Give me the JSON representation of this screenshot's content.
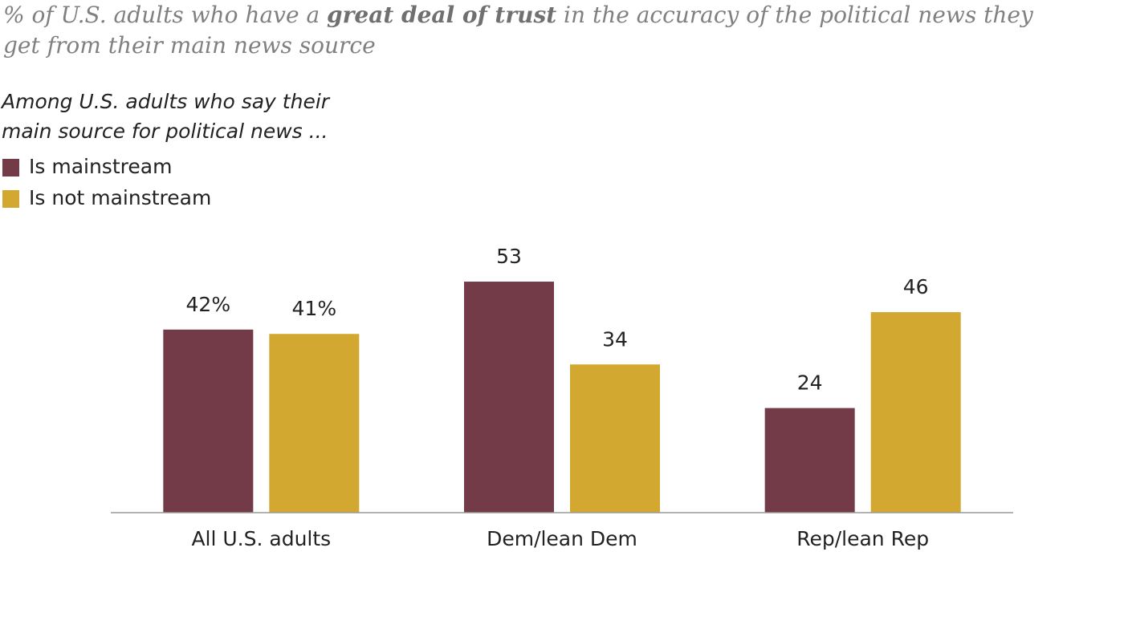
{
  "chart_data": {
    "type": "bar",
    "title_parts": [
      "% of U.S. adults who have a ",
      "great deal of trust",
      " in the accuracy of the political news they get from their main news source"
    ],
    "subtitle": "Among U.S. adults who say their main source for political news ...",
    "categories": [
      "All U.S. adults",
      "Dem/lean Dem",
      "Rep/lean Rep"
    ],
    "series": [
      {
        "name": "Is mainstream",
        "color": "#733b47",
        "values": [
          42,
          53,
          24
        ],
        "value_labels": [
          "42%",
          "53",
          "24"
        ]
      },
      {
        "name": "Is not mainstream",
        "color": "#d3a831",
        "values": [
          41,
          34,
          46
        ],
        "value_labels": [
          "41%",
          "34",
          "46"
        ]
      }
    ],
    "ylim": [
      0,
      60
    ]
  }
}
